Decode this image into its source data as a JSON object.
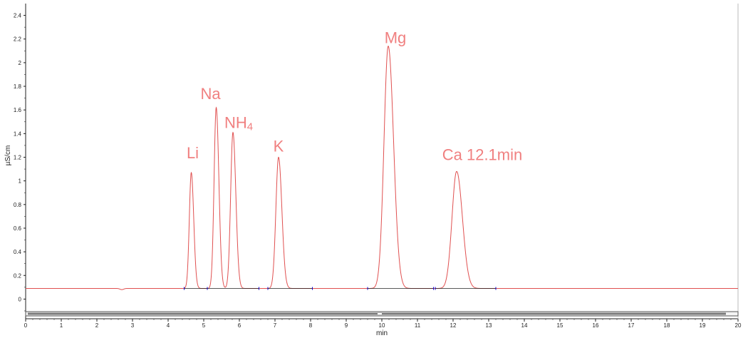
{
  "chart_data": {
    "type": "line",
    "title": "",
    "xlabel": "min",
    "ylabel": "µS/cm",
    "xlim": [
      0,
      20
    ],
    "ylim": [
      -0.1,
      2.5
    ],
    "x_ticks": [
      0,
      1,
      2,
      3,
      4,
      5,
      6,
      7,
      8,
      9,
      10,
      11,
      12,
      13,
      14,
      15,
      16,
      17,
      18,
      19,
      20
    ],
    "x_tick_labels": [
      "0",
      "1",
      "2",
      "3",
      "4",
      "5",
      "6",
      "7",
      "8",
      "9",
      "10",
      "11",
      "12",
      "13",
      "14",
      "15",
      "16",
      "17",
      "18",
      "19",
      "20"
    ],
    "y_ticks": [
      0,
      0.2,
      0.4,
      0.6,
      0.8,
      1,
      1.2,
      1.4,
      1.6,
      1.8,
      2,
      2.2,
      2.4
    ],
    "y_tick_labels": [
      "0",
      "0.2",
      "0.4",
      "0.6",
      "0.8",
      "1",
      "1.2",
      "1.4",
      "1.6",
      "1.8",
      "2",
      "2.2",
      "2.4"
    ],
    "grid": false,
    "baseline": 0.09,
    "colors": {
      "trace": "#e05050",
      "label": "#f08080",
      "integration_baseline": "#222222",
      "integration_marker": "#0000cc",
      "axis": "#222222"
    },
    "series": [
      {
        "peaks": [
          {
            "label": "Li",
            "label_sub": "",
            "time": 4.65,
            "height": 1.07
          },
          {
            "label": "Na",
            "label_sub": "",
            "time": 5.35,
            "height": 1.62
          },
          {
            "label": "NH",
            "label_sub": "4",
            "time": 5.82,
            "height": 1.41
          },
          {
            "label": "K",
            "label_sub": "",
            "time": 7.1,
            "height": 1.2
          },
          {
            "label": "Mg",
            "label_sub": "",
            "time": 10.18,
            "height": 2.14
          },
          {
            "label": "Ca 12.1min",
            "label_sub": "",
            "time": 12.1,
            "height": 1.08
          }
        ]
      }
    ]
  }
}
